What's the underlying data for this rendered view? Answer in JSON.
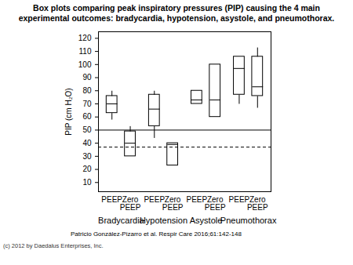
{
  "chart_data": {
    "type": "box",
    "title": "Box plots comparing peak inspiratory pressures (PIP) causing the 4 main experimental outcomes: bradycardia, hypotension, asystole, and pneumothorax.",
    "y_label": "PIP (cm H₂O)",
    "groups": [
      "Bradycardia",
      "Hypotension",
      "Asystole",
      "Pneumothorax"
    ],
    "categories": [
      "PEEP",
      "Zero PEEP"
    ],
    "boxes": [
      {
        "group": "Bradycardia",
        "category": "PEEP",
        "min": 58,
        "q1": 63,
        "median": 70,
        "q3": 76,
        "max": 80
      },
      {
        "group": "Bradycardia",
        "category": "Zero PEEP",
        "min": 30,
        "q1": 30,
        "median": 40,
        "q3": 49,
        "max": 53
      },
      {
        "group": "Hypotension",
        "category": "PEEP",
        "min": 44,
        "q1": 53,
        "median": 66,
        "q3": 77,
        "max": 80
      },
      {
        "group": "Hypotension",
        "category": "Zero PEEP",
        "min": 23,
        "q1": 23,
        "median": 39,
        "q3": 40,
        "max": 40
      },
      {
        "group": "Asystole",
        "category": "PEEP",
        "min": 70,
        "q1": 70,
        "median": 73,
        "q3": 80,
        "max": 80
      },
      {
        "group": "Asystole",
        "category": "Zero PEEP",
        "min": 60,
        "q1": 60,
        "median": 73,
        "q3": 100,
        "max": 100
      },
      {
        "group": "Pneumothorax",
        "category": "PEEP",
        "min": 70,
        "q1": 77,
        "median": 97,
        "q3": 106,
        "max": 106
      },
      {
        "group": "Pneumothorax",
        "category": "Zero PEEP",
        "min": 67,
        "q1": 76,
        "median": 83,
        "q3": 106,
        "max": 113
      }
    ],
    "color": "#000000",
    "ylim": [
      3,
      125
    ],
    "yticks": [
      10,
      20,
      30,
      40,
      50,
      60,
      70,
      80,
      90,
      100,
      110,
      120
    ],
    "grid": false,
    "reference_lines": [
      {
        "value": 50,
        "line_style": "solid"
      },
      {
        "value": 37,
        "line_style": "dashed"
      }
    ],
    "source": "Patricio González-Pizarro et al. Respir Care 2016;61:142-148",
    "copyright": "(c) 2012 by Daedalus Enterprises, Inc."
  }
}
